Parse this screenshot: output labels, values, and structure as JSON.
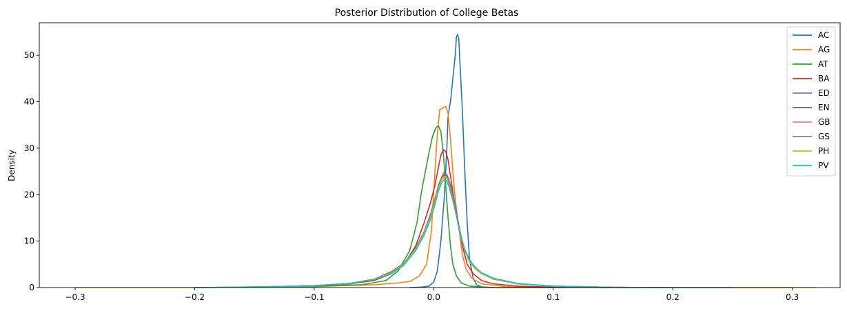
{
  "chart_data": {
    "type": "line",
    "title": "Posterior Distribution of College Betas",
    "xlabel": "",
    "ylabel": "Density",
    "xlim": [
      -0.33,
      0.34
    ],
    "ylim": [
      0,
      57
    ],
    "xticks": [
      -0.3,
      -0.2,
      -0.1,
      0.0,
      0.1,
      0.2,
      0.3
    ],
    "xtick_labels": [
      "−0.3",
      "−0.2",
      "−0.1",
      "0.0",
      "0.1",
      "0.2",
      "0.3"
    ],
    "yticks": [
      0,
      10,
      20,
      30,
      40,
      50
    ],
    "ytick_labels": [
      "0",
      "10",
      "20",
      "30",
      "40",
      "50"
    ],
    "grid": false,
    "legend_position": "top-right",
    "series": [
      {
        "name": "AC",
        "color": "#1f77b4",
        "points": [
          [
            -0.02,
            0
          ],
          [
            -0.01,
            0.1
          ],
          [
            -0.004,
            0.3
          ],
          [
            0.0,
            1.2
          ],
          [
            0.003,
            3.5
          ],
          [
            0.006,
            10
          ],
          [
            0.009,
            20
          ],
          [
            0.011,
            30
          ],
          [
            0.012,
            37
          ],
          [
            0.014,
            40
          ],
          [
            0.016,
            45
          ],
          [
            0.018,
            50
          ],
          [
            0.019,
            54
          ],
          [
            0.02,
            54.5
          ],
          [
            0.021,
            53.5
          ],
          [
            0.022,
            48
          ],
          [
            0.024,
            38
          ],
          [
            0.026,
            25
          ],
          [
            0.028,
            14
          ],
          [
            0.03,
            6
          ],
          [
            0.033,
            2
          ],
          [
            0.036,
            0.6
          ],
          [
            0.04,
            0.15
          ],
          [
            0.05,
            0
          ]
        ]
      },
      {
        "name": "AG",
        "color": "#ff7f0e",
        "points": [
          [
            -0.2,
            0
          ],
          [
            -0.1,
            0.2
          ],
          [
            -0.05,
            0.6
          ],
          [
            -0.03,
            1.0
          ],
          [
            -0.02,
            1.3
          ],
          [
            -0.012,
            2.5
          ],
          [
            -0.006,
            5
          ],
          [
            -0.002,
            12
          ],
          [
            0.001,
            25
          ],
          [
            0.003,
            33
          ],
          [
            0.005,
            38.3
          ],
          [
            0.008,
            38.7
          ],
          [
            0.01,
            39
          ],
          [
            0.012,
            37.5
          ],
          [
            0.014,
            32
          ],
          [
            0.016,
            25
          ],
          [
            0.018,
            19
          ],
          [
            0.02,
            15
          ],
          [
            0.022,
            11
          ],
          [
            0.024,
            7
          ],
          [
            0.027,
            4
          ],
          [
            0.032,
            2
          ],
          [
            0.04,
            0.8
          ],
          [
            0.06,
            0.2
          ],
          [
            0.1,
            0
          ],
          [
            0.2,
            0
          ],
          [
            0.3,
            0
          ]
        ]
      },
      {
        "name": "AT",
        "color": "#2ca02c",
        "points": [
          [
            -0.2,
            0
          ],
          [
            -0.1,
            0.3
          ],
          [
            -0.06,
            0.6
          ],
          [
            -0.04,
            1.5
          ],
          [
            -0.03,
            3.5
          ],
          [
            -0.02,
            8
          ],
          [
            -0.014,
            14
          ],
          [
            -0.01,
            21
          ],
          [
            -0.007,
            25
          ],
          [
            -0.004,
            29
          ],
          [
            -0.001,
            32.5
          ],
          [
            0.002,
            34.5
          ],
          [
            0.004,
            34.8
          ],
          [
            0.006,
            33.5
          ],
          [
            0.008,
            29
          ],
          [
            0.01,
            22
          ],
          [
            0.012,
            15
          ],
          [
            0.014,
            9
          ],
          [
            0.016,
            5
          ],
          [
            0.019,
            2.5
          ],
          [
            0.023,
            1
          ],
          [
            0.03,
            0.3
          ],
          [
            0.05,
            0
          ],
          [
            0.1,
            0
          ]
        ]
      },
      {
        "name": "BA",
        "color": "#d62728",
        "points": [
          [
            -0.15,
            0.1
          ],
          [
            -0.1,
            0.4
          ],
          [
            -0.07,
            0.8
          ],
          [
            -0.05,
            1.5
          ],
          [
            -0.035,
            3
          ],
          [
            -0.025,
            5
          ],
          [
            -0.015,
            9
          ],
          [
            -0.008,
            14
          ],
          [
            -0.003,
            18
          ],
          [
            0.001,
            22
          ],
          [
            0.004,
            26
          ],
          [
            0.006,
            28.5
          ],
          [
            0.008,
            29.7
          ],
          [
            0.01,
            29.3
          ],
          [
            0.012,
            27.5
          ],
          [
            0.014,
            24
          ],
          [
            0.017,
            19
          ],
          [
            0.02,
            14
          ],
          [
            0.024,
            9
          ],
          [
            0.028,
            5
          ],
          [
            0.033,
            3
          ],
          [
            0.04,
            1.5
          ],
          [
            0.05,
            0.8
          ],
          [
            0.07,
            0.3
          ],
          [
            0.1,
            0.1
          ],
          [
            0.15,
            0
          ]
        ]
      },
      {
        "name": "ED",
        "color": "#9467bd",
        "points": [
          [
            -0.15,
            0.1
          ],
          [
            -0.1,
            0.4
          ],
          [
            -0.07,
            0.9
          ],
          [
            -0.05,
            1.8
          ],
          [
            -0.035,
            3.2
          ],
          [
            -0.025,
            5
          ],
          [
            -0.015,
            8.5
          ],
          [
            -0.008,
            12
          ],
          [
            -0.003,
            15.5
          ],
          [
            0.001,
            19
          ],
          [
            0.004,
            22
          ],
          [
            0.007,
            24
          ],
          [
            0.009,
            25
          ],
          [
            0.011,
            24.3
          ],
          [
            0.013,
            23
          ],
          [
            0.016,
            20
          ],
          [
            0.019,
            16
          ],
          [
            0.022,
            12
          ],
          [
            0.026,
            8
          ],
          [
            0.03,
            5.5
          ],
          [
            0.035,
            4
          ],
          [
            0.04,
            3
          ],
          [
            0.05,
            1.8
          ],
          [
            0.07,
            0.8
          ],
          [
            0.1,
            0.3
          ],
          [
            0.15,
            0.05
          ],
          [
            0.2,
            0
          ]
        ]
      },
      {
        "name": "EN",
        "color": "#8c564b",
        "points": [
          [
            -0.15,
            0.1
          ],
          [
            -0.1,
            0.4
          ],
          [
            -0.07,
            0.9
          ],
          [
            -0.05,
            1.8
          ],
          [
            -0.035,
            3.5
          ],
          [
            -0.025,
            5.2
          ],
          [
            -0.015,
            8.5
          ],
          [
            -0.008,
            12
          ],
          [
            -0.003,
            15.5
          ],
          [
            0.001,
            19
          ],
          [
            0.004,
            22
          ],
          [
            0.007,
            23.8
          ],
          [
            0.009,
            24.3
          ],
          [
            0.011,
            24
          ],
          [
            0.013,
            22.5
          ],
          [
            0.016,
            19.5
          ],
          [
            0.019,
            16
          ],
          [
            0.022,
            12
          ],
          [
            0.026,
            8
          ],
          [
            0.03,
            5.5
          ],
          [
            0.035,
            4
          ],
          [
            0.04,
            3
          ],
          [
            0.05,
            1.8
          ],
          [
            0.07,
            0.8
          ],
          [
            0.1,
            0.3
          ],
          [
            0.15,
            0.05
          ],
          [
            0.2,
            0
          ]
        ]
      },
      {
        "name": "GB",
        "color": "#e377c2",
        "points": [
          [
            -0.15,
            0.1
          ],
          [
            -0.1,
            0.4
          ],
          [
            -0.07,
            0.9
          ],
          [
            -0.05,
            1.8
          ],
          [
            -0.035,
            3.2
          ],
          [
            -0.025,
            5
          ],
          [
            -0.015,
            8.3
          ],
          [
            -0.008,
            11.8
          ],
          [
            -0.003,
            15
          ],
          [
            0.001,
            18.5
          ],
          [
            0.004,
            21.5
          ],
          [
            0.007,
            23.5
          ],
          [
            0.009,
            24
          ],
          [
            0.011,
            23.6
          ],
          [
            0.013,
            22
          ],
          [
            0.016,
            19
          ],
          [
            0.019,
            15.5
          ],
          [
            0.022,
            11.5
          ],
          [
            0.026,
            8
          ],
          [
            0.03,
            5.5
          ],
          [
            0.035,
            4
          ],
          [
            0.04,
            3
          ],
          [
            0.05,
            1.8
          ],
          [
            0.07,
            0.8
          ],
          [
            0.1,
            0.3
          ],
          [
            0.15,
            0.05
          ],
          [
            0.2,
            0
          ]
        ]
      },
      {
        "name": "GS",
        "color": "#7f7f7f",
        "points": [
          [
            -0.15,
            0.1
          ],
          [
            -0.1,
            0.4
          ],
          [
            -0.07,
            0.9
          ],
          [
            -0.05,
            1.8
          ],
          [
            -0.035,
            3.4
          ],
          [
            -0.025,
            5.2
          ],
          [
            -0.015,
            8.6
          ],
          [
            -0.008,
            12
          ],
          [
            -0.003,
            15.2
          ],
          [
            0.001,
            18.7
          ],
          [
            0.004,
            21.6
          ],
          [
            0.007,
            23.4
          ],
          [
            0.009,
            23.9
          ],
          [
            0.011,
            23.5
          ],
          [
            0.013,
            22
          ],
          [
            0.016,
            19
          ],
          [
            0.019,
            15.5
          ],
          [
            0.022,
            11.5
          ],
          [
            0.026,
            8
          ],
          [
            0.03,
            5.5
          ],
          [
            0.035,
            4
          ],
          [
            0.04,
            3
          ],
          [
            0.05,
            1.8
          ],
          [
            0.07,
            0.8
          ],
          [
            0.1,
            0.3
          ],
          [
            0.15,
            0.05
          ],
          [
            0.2,
            0
          ]
        ]
      },
      {
        "name": "PH",
        "color": "#bcbd22",
        "points": [
          [
            -0.3,
            0
          ],
          [
            -0.2,
            0
          ],
          [
            -0.15,
            0.1
          ],
          [
            -0.1,
            0.4
          ],
          [
            -0.07,
            0.9
          ],
          [
            -0.05,
            1.8
          ],
          [
            -0.035,
            3.2
          ],
          [
            -0.025,
            5
          ],
          [
            -0.015,
            8.3
          ],
          [
            -0.008,
            11.7
          ],
          [
            -0.003,
            15
          ],
          [
            0.001,
            18.5
          ],
          [
            0.004,
            21.5
          ],
          [
            0.007,
            23.5
          ],
          [
            0.009,
            24
          ],
          [
            0.011,
            23.6
          ],
          [
            0.013,
            22
          ],
          [
            0.016,
            19
          ],
          [
            0.019,
            15.5
          ],
          [
            0.022,
            11.5
          ],
          [
            0.026,
            8
          ],
          [
            0.03,
            5.5
          ],
          [
            0.035,
            4
          ],
          [
            0.04,
            3
          ],
          [
            0.05,
            1.8
          ],
          [
            0.07,
            0.8
          ],
          [
            0.1,
            0.3
          ],
          [
            0.15,
            0.05
          ],
          [
            0.2,
            0
          ],
          [
            0.3,
            0
          ],
          [
            0.32,
            0
          ]
        ]
      },
      {
        "name": "PV",
        "color": "#17becf",
        "points": [
          [
            -0.2,
            0
          ],
          [
            -0.15,
            0.1
          ],
          [
            -0.1,
            0.4
          ],
          [
            -0.07,
            0.9
          ],
          [
            -0.05,
            1.7
          ],
          [
            -0.035,
            3
          ],
          [
            -0.025,
            4.8
          ],
          [
            -0.015,
            8
          ],
          [
            -0.008,
            11.3
          ],
          [
            -0.003,
            14.5
          ],
          [
            0.001,
            17.8
          ],
          [
            0.004,
            20.8
          ],
          [
            0.007,
            22.8
          ],
          [
            0.009,
            23.3
          ],
          [
            0.011,
            22.9
          ],
          [
            0.013,
            21.5
          ],
          [
            0.016,
            18.7
          ],
          [
            0.019,
            15.5
          ],
          [
            0.022,
            11.8
          ],
          [
            0.026,
            8.2
          ],
          [
            0.03,
            6
          ],
          [
            0.035,
            4.3
          ],
          [
            0.04,
            3.2
          ],
          [
            0.05,
            2
          ],
          [
            0.07,
            0.9
          ],
          [
            0.1,
            0.3
          ],
          [
            0.15,
            0.05
          ],
          [
            0.2,
            0
          ],
          [
            0.25,
            0
          ]
        ]
      }
    ]
  }
}
